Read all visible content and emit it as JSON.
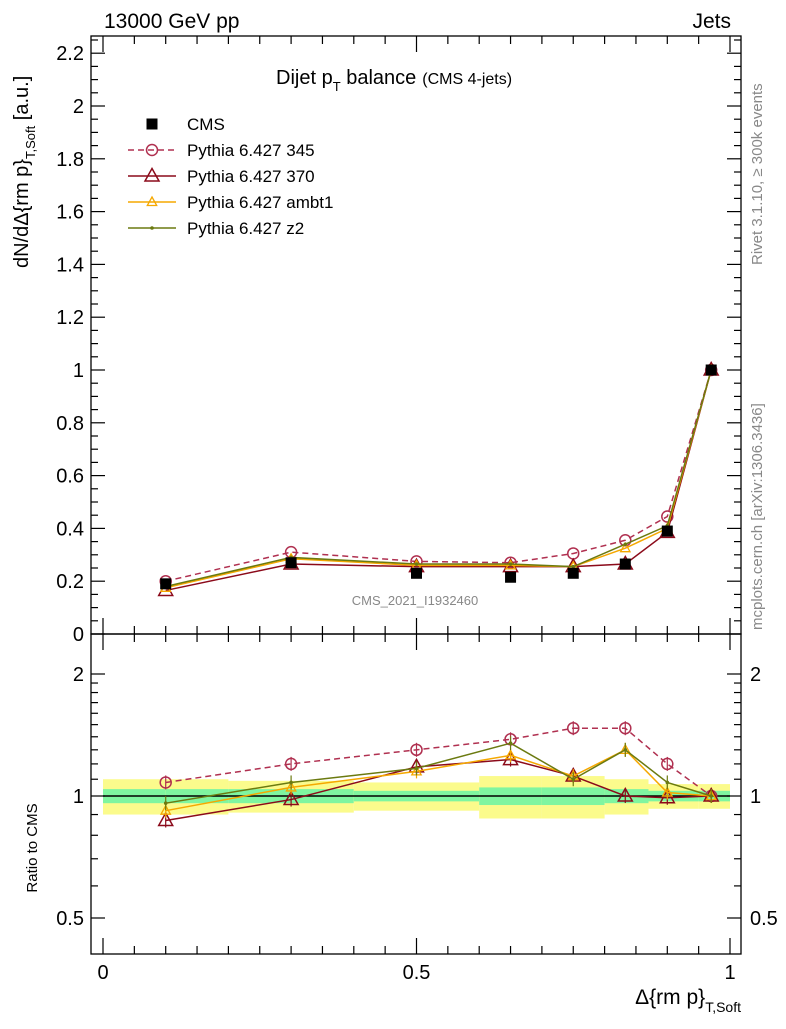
{
  "header": {
    "left": "13000 GeV pp",
    "right": "Jets"
  },
  "side_text": {
    "rivet": "Rivet 3.1.10, ≥ 300k events",
    "mcplots": "mcplots.cern.ch [arXiv:1306.3436]"
  },
  "colors": {
    "cms": "#000000",
    "p345": "#b03050",
    "p370": "#8b0a1a",
    "ambt1": "#f5a800",
    "z2": "#6b7a10",
    "band_inner": "#7ff5a0",
    "band_outer": "#fbfb8c"
  },
  "chart_data": [
    {
      "type": "line",
      "title": "Dijet p",
      "title_sub": "T",
      "title_rest": " balance",
      "title_note": "(CMS 4-jets)",
      "watermark": "CMS_2021_I1932460",
      "ylabel": "dN/dΔ{rm p}",
      "ylabel_sub": "T,Soft",
      "ylabel_unit": " [a.u.]",
      "xlim": [
        0,
        1
      ],
      "ylim": [
        0,
        2.26
      ],
      "yticks": [
        "0",
        "0.2",
        "0.4",
        "0.6",
        "0.8",
        "1",
        "1.2",
        "1.4",
        "1.6",
        "1.8",
        "2",
        "2.2"
      ],
      "legend_position": "top-left",
      "x": [
        0.1,
        0.3,
        0.5,
        0.65,
        0.75,
        0.833,
        0.9,
        0.97
      ],
      "series": [
        {
          "name": "CMS",
          "marker": "square",
          "values": [
            0.19,
            0.27,
            0.23,
            0.215,
            0.23,
            0.265,
            0.39,
            1.0
          ]
        },
        {
          "name": "Pythia 6.427 345",
          "marker": "circle",
          "dashed": true,
          "values": [
            0.2,
            0.31,
            0.275,
            0.27,
            0.305,
            0.355,
            0.445,
            1.0
          ]
        },
        {
          "name": "Pythia 6.427 370",
          "marker": "triangle",
          "values": [
            0.165,
            0.265,
            0.255,
            0.255,
            0.255,
            0.265,
            0.385,
            1.0
          ]
        },
        {
          "name": "Pythia 6.427 ambt1",
          "marker": "small-triangle",
          "values": [
            0.175,
            0.285,
            0.26,
            0.26,
            0.255,
            0.325,
            0.4,
            1.0
          ]
        },
        {
          "name": "Pythia 6.427 z2",
          "marker": "dot",
          "values": [
            0.18,
            0.29,
            0.265,
            0.265,
            0.255,
            0.34,
            0.41,
            1.0
          ]
        }
      ]
    },
    {
      "type": "line",
      "ylabel": "Ratio to CMS",
      "xlabel": "Δ{rm p}",
      "xlabel_sub": "T,Soft",
      "xlim": [
        0,
        1
      ],
      "ylim": [
        0.41,
        2.3
      ],
      "log_scale_y": true,
      "xticks": [
        "0",
        "0.5",
        "1"
      ],
      "yticks": [
        "0.5",
        "1",
        "2"
      ],
      "x": [
        0.1,
        0.3,
        0.5,
        0.65,
        0.75,
        0.833,
        0.9,
        0.97
      ],
      "series": [
        {
          "name": "Pythia 6.427 345",
          "values": [
            1.08,
            1.2,
            1.3,
            1.38,
            1.47,
            1.47,
            1.2,
            1.0
          ]
        },
        {
          "name": "Pythia 6.427 370",
          "values": [
            0.87,
            0.98,
            1.18,
            1.23,
            1.12,
            1.0,
            0.99,
            1.0
          ]
        },
        {
          "name": "Pythia 6.427 ambt1",
          "values": [
            0.92,
            1.05,
            1.15,
            1.26,
            1.12,
            1.3,
            1.02,
            1.0
          ]
        },
        {
          "name": "Pythia 6.427 z2",
          "values": [
            0.96,
            1.08,
            1.17,
            1.35,
            1.1,
            1.3,
            1.08,
            1.0
          ]
        }
      ],
      "uncertainty_band": {
        "edges": [
          0,
          0.1,
          0.2,
          0.4,
          0.6,
          0.7,
          0.8,
          0.87,
          0.95,
          1.0
        ],
        "inner": [
          0.04,
          0.04,
          0.04,
          0.03,
          0.05,
          0.05,
          0.04,
          0.03,
          0.03
        ],
        "outer": [
          0.1,
          0.1,
          0.09,
          0.08,
          0.12,
          0.12,
          0.1,
          0.07,
          0.07
        ]
      }
    }
  ]
}
